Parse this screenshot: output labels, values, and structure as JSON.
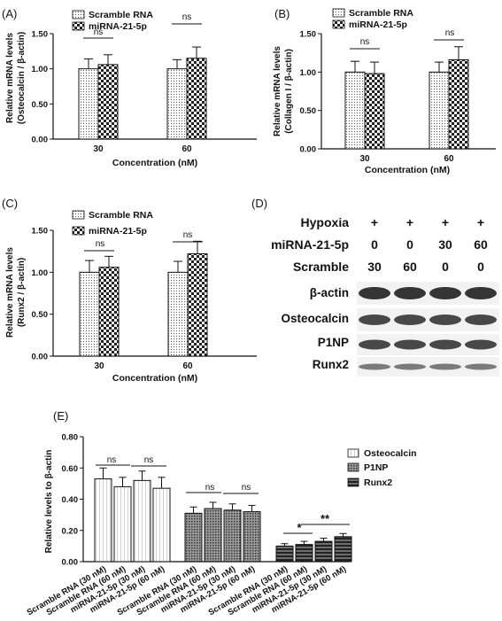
{
  "colors": {
    "ink": "#111111",
    "blot_bg": "#f2f2f2",
    "band": "#2a2a2a"
  },
  "panels": {
    "A": {
      "letter": "(A)",
      "ylabel1": "Relative  mRNA levels",
      "ylabel2": "(Osteocalcin / β-actin)",
      "xlabel": "Concentration (nM)",
      "ns1": "ns",
      "ns2": "ns",
      "legend": [
        "Scramble RNA",
        "miRNA-21-5p"
      ]
    },
    "B": {
      "letter": "(B)",
      "ylabel1": "Relative  mRNA levels",
      "ylabel2": "(Collagen I / β-actin)",
      "xlabel": "Concentration (nM)",
      "ns1": "ns",
      "ns2": "ns",
      "legend": [
        "Scramble RNA",
        "miRNA-21-5p"
      ]
    },
    "C": {
      "letter": "(C)",
      "ylabel1": "Relative  mRNA levels",
      "ylabel2": "(Runx2 / β-actin)",
      "xlabel": "Concentration (nM)",
      "ns1": "ns",
      "ns2": "ns",
      "legend": [
        "Scramble RNA",
        "miRNA-21-5p"
      ]
    },
    "D": {
      "letter": "(D)",
      "rows": [
        {
          "label": "Hypoxia",
          "values": [
            "+",
            "+",
            "+",
            "+"
          ]
        },
        {
          "label": "miRNA-21-5p",
          "values": [
            "0",
            "0",
            "30",
            "60"
          ]
        },
        {
          "label": "Scramble",
          "values": [
            "30",
            "60",
            "0",
            "0"
          ]
        }
      ],
      "bands": [
        "β-actin",
        "Osteocalcin",
        "P1NP",
        "Runx2"
      ]
    },
    "E": {
      "letter": "(E)",
      "ylabel": "Relative  levels to β-actin",
      "legend": [
        "Osteocalcin",
        "P1NP",
        "Runx2"
      ],
      "sig": [
        "ns",
        "ns",
        "ns",
        "ns",
        "*",
        "**"
      ]
    }
  },
  "chart_data": [
    {
      "type": "bar",
      "panel": "A",
      "categories": [
        "30",
        "60"
      ],
      "series": [
        {
          "name": "Scramble RNA",
          "values": [
            1.0,
            1.0
          ],
          "errors": [
            0.14,
            0.13
          ]
        },
        {
          "name": "miRNA-21-5p",
          "values": [
            1.06,
            1.15
          ],
          "errors": [
            0.14,
            0.16
          ]
        }
      ],
      "xlabel": "Concentration (nM)",
      "ylabel": "Relative  mRNA levels (Osteocalcin / β-actin)",
      "ylim": [
        0,
        1.5
      ],
      "yticks": [
        "0.00",
        "0.50",
        "1.00",
        "1.50"
      ]
    },
    {
      "type": "bar",
      "panel": "B",
      "categories": [
        "30",
        "60"
      ],
      "series": [
        {
          "name": "Scramble RNA",
          "values": [
            1.0,
            1.0
          ],
          "errors": [
            0.14,
            0.13
          ]
        },
        {
          "name": "miRNA-21-5p",
          "values": [
            0.98,
            1.16
          ],
          "errors": [
            0.15,
            0.17
          ]
        }
      ],
      "xlabel": "Concentration (nM)",
      "ylabel": "Relative  mRNA levels (Collagen I / β-actin)",
      "ylim": [
        0,
        1.5
      ],
      "yticks": [
        "0.00",
        "0.50",
        "1.00",
        "1.50"
      ]
    },
    {
      "type": "bar",
      "panel": "C",
      "categories": [
        "30",
        "60"
      ],
      "series": [
        {
          "name": "Scramble RNA",
          "values": [
            1.0,
            1.0
          ],
          "errors": [
            0.14,
            0.13
          ]
        },
        {
          "name": "miRNA-21-5p",
          "values": [
            1.06,
            1.22
          ],
          "errors": [
            0.13,
            0.15
          ]
        }
      ],
      "xlabel": "Concentration (nM)",
      "ylabel": "Relative  mRNA levels (Runx2 / β-actin)",
      "ylim": [
        0,
        1.5
      ],
      "yticks": [
        "0.00",
        "0.50",
        "1.00",
        "1.50"
      ]
    },
    {
      "type": "bar",
      "panel": "E",
      "categories": [
        "Scramble RNA (30 nM)",
        "Scramble RNA (60 nM)",
        "miRNA-21-5p (30 nM)",
        "miRNA-21-5p (60 nM)"
      ],
      "series": [
        {
          "name": "Osteocalcin",
          "values": [
            0.53,
            0.48,
            0.52,
            0.47
          ],
          "errors": [
            0.07,
            0.06,
            0.06,
            0.07
          ]
        },
        {
          "name": "P1NP",
          "values": [
            0.31,
            0.34,
            0.33,
            0.32
          ],
          "errors": [
            0.04,
            0.04,
            0.04,
            0.04
          ]
        },
        {
          "name": "Runx2",
          "values": [
            0.1,
            0.11,
            0.13,
            0.16
          ],
          "errors": [
            0.015,
            0.02,
            0.02,
            0.02
          ]
        }
      ],
      "ylabel": "Relative  levels to β-actin",
      "ylim": [
        0,
        0.8
      ],
      "yticks": [
        "0.00",
        "0.20",
        "0.40",
        "0.60",
        "0.80"
      ]
    }
  ]
}
